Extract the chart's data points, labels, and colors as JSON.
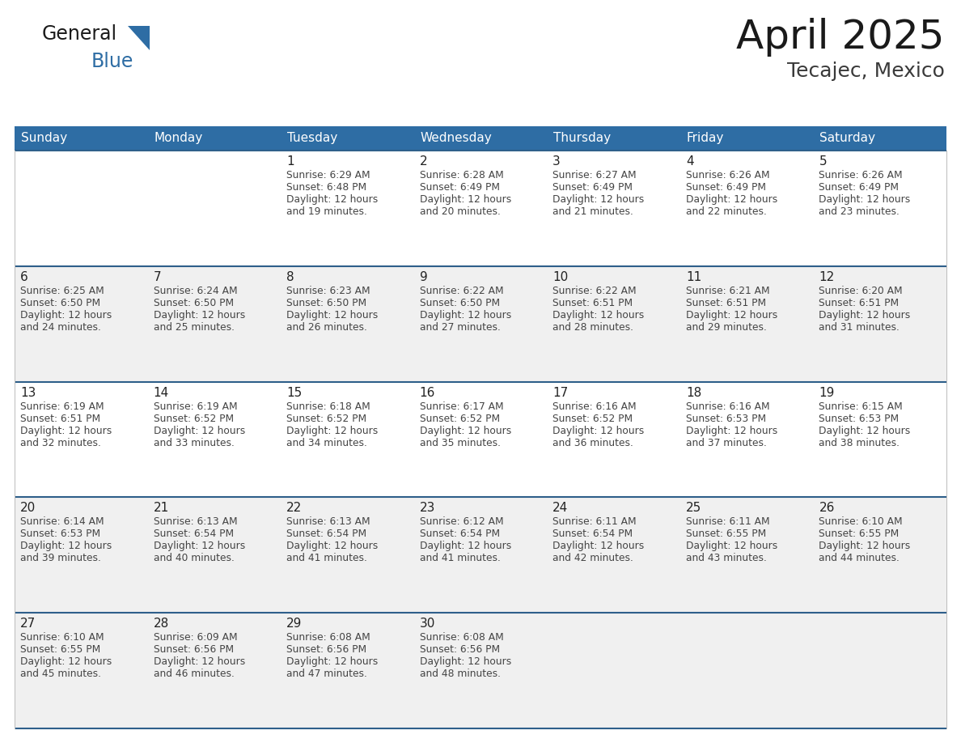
{
  "title": "April 2025",
  "subtitle": "Tecajec, Mexico",
  "header_bg_color": "#2E6DA4",
  "header_text_color": "#FFFFFF",
  "day_names": [
    "Sunday",
    "Monday",
    "Tuesday",
    "Wednesday",
    "Thursday",
    "Friday",
    "Saturday"
  ],
  "row_colors": [
    "#FFFFFF",
    "#F0F0F0",
    "#FFFFFF",
    "#F0F0F0",
    "#F0F0F0"
  ],
  "separator_color": "#2E5F8A",
  "text_color": "#333333",
  "title_color": "#1a1a1a",
  "logo_general_color": "#1a1a1a",
  "logo_blue_color": "#2E6DA4",
  "logo_triangle_color": "#2E6DA4",
  "days": [
    {
      "day": 1,
      "col": 2,
      "row": 0,
      "sunrise": "6:29 AM",
      "sunset": "6:48 PM",
      "daylight_hours": 12,
      "daylight_minutes": 19
    },
    {
      "day": 2,
      "col": 3,
      "row": 0,
      "sunrise": "6:28 AM",
      "sunset": "6:49 PM",
      "daylight_hours": 12,
      "daylight_minutes": 20
    },
    {
      "day": 3,
      "col": 4,
      "row": 0,
      "sunrise": "6:27 AM",
      "sunset": "6:49 PM",
      "daylight_hours": 12,
      "daylight_minutes": 21
    },
    {
      "day": 4,
      "col": 5,
      "row": 0,
      "sunrise": "6:26 AM",
      "sunset": "6:49 PM",
      "daylight_hours": 12,
      "daylight_minutes": 22
    },
    {
      "day": 5,
      "col": 6,
      "row": 0,
      "sunrise": "6:26 AM",
      "sunset": "6:49 PM",
      "daylight_hours": 12,
      "daylight_minutes": 23
    },
    {
      "day": 6,
      "col": 0,
      "row": 1,
      "sunrise": "6:25 AM",
      "sunset": "6:50 PM",
      "daylight_hours": 12,
      "daylight_minutes": 24
    },
    {
      "day": 7,
      "col": 1,
      "row": 1,
      "sunrise": "6:24 AM",
      "sunset": "6:50 PM",
      "daylight_hours": 12,
      "daylight_minutes": 25
    },
    {
      "day": 8,
      "col": 2,
      "row": 1,
      "sunrise": "6:23 AM",
      "sunset": "6:50 PM",
      "daylight_hours": 12,
      "daylight_minutes": 26
    },
    {
      "day": 9,
      "col": 3,
      "row": 1,
      "sunrise": "6:22 AM",
      "sunset": "6:50 PM",
      "daylight_hours": 12,
      "daylight_minutes": 27
    },
    {
      "day": 10,
      "col": 4,
      "row": 1,
      "sunrise": "6:22 AM",
      "sunset": "6:51 PM",
      "daylight_hours": 12,
      "daylight_minutes": 28
    },
    {
      "day": 11,
      "col": 5,
      "row": 1,
      "sunrise": "6:21 AM",
      "sunset": "6:51 PM",
      "daylight_hours": 12,
      "daylight_minutes": 29
    },
    {
      "day": 12,
      "col": 6,
      "row": 1,
      "sunrise": "6:20 AM",
      "sunset": "6:51 PM",
      "daylight_hours": 12,
      "daylight_minutes": 31
    },
    {
      "day": 13,
      "col": 0,
      "row": 2,
      "sunrise": "6:19 AM",
      "sunset": "6:51 PM",
      "daylight_hours": 12,
      "daylight_minutes": 32
    },
    {
      "day": 14,
      "col": 1,
      "row": 2,
      "sunrise": "6:19 AM",
      "sunset": "6:52 PM",
      "daylight_hours": 12,
      "daylight_minutes": 33
    },
    {
      "day": 15,
      "col": 2,
      "row": 2,
      "sunrise": "6:18 AM",
      "sunset": "6:52 PM",
      "daylight_hours": 12,
      "daylight_minutes": 34
    },
    {
      "day": 16,
      "col": 3,
      "row": 2,
      "sunrise": "6:17 AM",
      "sunset": "6:52 PM",
      "daylight_hours": 12,
      "daylight_minutes": 35
    },
    {
      "day": 17,
      "col": 4,
      "row": 2,
      "sunrise": "6:16 AM",
      "sunset": "6:52 PM",
      "daylight_hours": 12,
      "daylight_minutes": 36
    },
    {
      "day": 18,
      "col": 5,
      "row": 2,
      "sunrise": "6:16 AM",
      "sunset": "6:53 PM",
      "daylight_hours": 12,
      "daylight_minutes": 37
    },
    {
      "day": 19,
      "col": 6,
      "row": 2,
      "sunrise": "6:15 AM",
      "sunset": "6:53 PM",
      "daylight_hours": 12,
      "daylight_minutes": 38
    },
    {
      "day": 20,
      "col": 0,
      "row": 3,
      "sunrise": "6:14 AM",
      "sunset": "6:53 PM",
      "daylight_hours": 12,
      "daylight_minutes": 39
    },
    {
      "day": 21,
      "col": 1,
      "row": 3,
      "sunrise": "6:13 AM",
      "sunset": "6:54 PM",
      "daylight_hours": 12,
      "daylight_minutes": 40
    },
    {
      "day": 22,
      "col": 2,
      "row": 3,
      "sunrise": "6:13 AM",
      "sunset": "6:54 PM",
      "daylight_hours": 12,
      "daylight_minutes": 41
    },
    {
      "day": 23,
      "col": 3,
      "row": 3,
      "sunrise": "6:12 AM",
      "sunset": "6:54 PM",
      "daylight_hours": 12,
      "daylight_minutes": 41
    },
    {
      "day": 24,
      "col": 4,
      "row": 3,
      "sunrise": "6:11 AM",
      "sunset": "6:54 PM",
      "daylight_hours": 12,
      "daylight_minutes": 42
    },
    {
      "day": 25,
      "col": 5,
      "row": 3,
      "sunrise": "6:11 AM",
      "sunset": "6:55 PM",
      "daylight_hours": 12,
      "daylight_minutes": 43
    },
    {
      "day": 26,
      "col": 6,
      "row": 3,
      "sunrise": "6:10 AM",
      "sunset": "6:55 PM",
      "daylight_hours": 12,
      "daylight_minutes": 44
    },
    {
      "day": 27,
      "col": 0,
      "row": 4,
      "sunrise": "6:10 AM",
      "sunset": "6:55 PM",
      "daylight_hours": 12,
      "daylight_minutes": 45
    },
    {
      "day": 28,
      "col": 1,
      "row": 4,
      "sunrise": "6:09 AM",
      "sunset": "6:56 PM",
      "daylight_hours": 12,
      "daylight_minutes": 46
    },
    {
      "day": 29,
      "col": 2,
      "row": 4,
      "sunrise": "6:08 AM",
      "sunset": "6:56 PM",
      "daylight_hours": 12,
      "daylight_minutes": 47
    },
    {
      "day": 30,
      "col": 3,
      "row": 4,
      "sunrise": "6:08 AM",
      "sunset": "6:56 PM",
      "daylight_hours": 12,
      "daylight_minutes": 48
    }
  ]
}
